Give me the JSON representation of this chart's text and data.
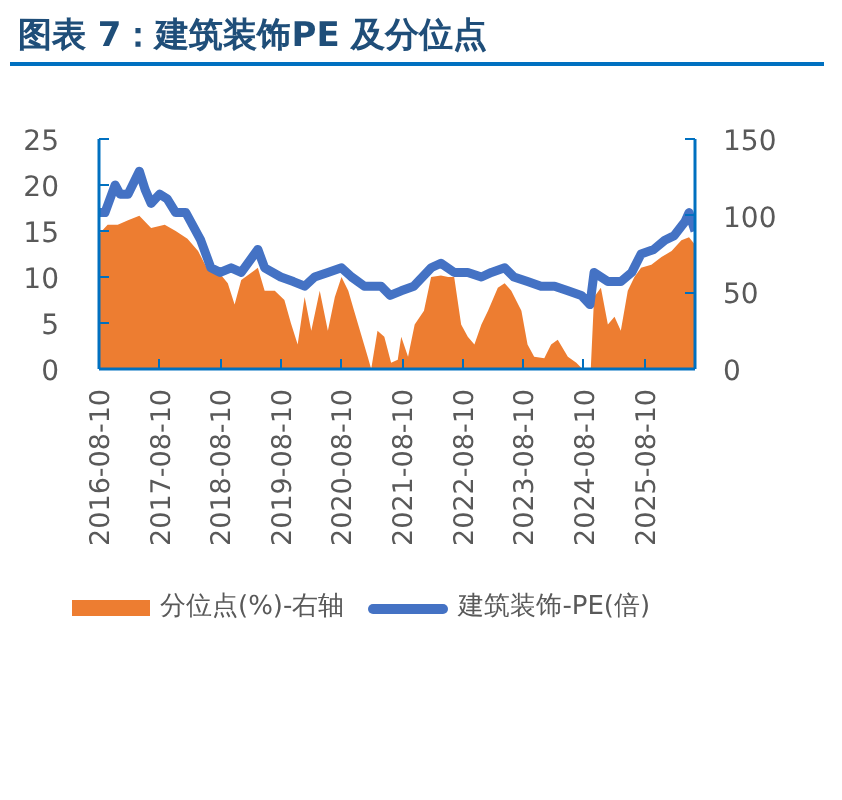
{
  "chart_data": {
    "type": "area",
    "title": "图表 7：建筑装饰PE 及分位点",
    "series": [
      {
        "name": "分位点(%)-右轴",
        "axis": "y2",
        "color": "#ed7d31",
        "x": [
          "2016-08-10",
          "2016-10-01",
          "2016-12-01",
          "2017-02-01",
          "2017-04-10",
          "2017-06-20",
          "2017-09-10",
          "2017-11-15",
          "2018-01-25",
          "2018-03-30",
          "2018-05-30",
          "2018-07-25",
          "2018-09-25",
          "2018-11-05",
          "2018-12-15",
          "2019-03-25",
          "2019-05-05",
          "2019-07-05",
          "2019-09-01",
          "2019-10-10",
          "2019-11-20",
          "2020-01-01",
          "2020-02-10",
          "2020-04-01",
          "2020-05-20",
          "2020-07-01",
          "2020-08-10",
          "2020-09-20",
          "2020-10-25",
          "2020-12-05",
          "2021-01-15",
          "2021-02-05",
          "2021-03-15",
          "2021-04-25",
          "2021-06-05",
          "2021-07-15",
          "2021-08-05",
          "2021-09-15",
          "2021-10-25",
          "2021-12-20",
          "2022-02-01",
          "2022-04-01",
          "2022-05-15",
          "2022-06-20",
          "2022-08-01",
          "2022-09-10",
          "2022-10-20",
          "2022-12-01",
          "2023-01-10",
          "2023-03-10",
          "2023-04-20",
          "2023-05-30",
          "2023-07-30",
          "2023-09-05",
          "2023-10-15",
          "2023-12-15",
          "2024-01-25",
          "2024-03-05",
          "2024-05-05",
          "2024-06-25",
          "2024-08-01",
          "2024-09-20",
          "2024-10-10",
          "2024-11-20",
          "2025-01-01",
          "2025-02-10",
          "2025-03-20",
          "2025-05-01",
          "2025-06-10",
          "2025-07-20",
          "2025-09-20",
          "2025-11-20",
          "2026-01-20",
          "2026-03-20",
          "2026-05-05",
          "2026-06-10"
        ],
        "values": [
          88,
          94,
          94,
          97,
          100,
          92,
          94,
          90,
          85,
          77,
          64,
          64,
          56,
          42,
          58,
          66,
          51,
          51,
          45,
          30,
          16,
          47,
          25,
          51,
          25,
          47,
          60,
          51,
          38,
          23,
          8,
          0,
          25,
          21,
          4,
          6,
          21,
          8,
          29,
          38,
          60,
          61,
          60,
          60,
          29,
          21,
          16,
          29,
          38,
          53,
          56,
          51,
          38,
          16,
          8,
          7,
          16,
          19,
          8,
          4,
          0,
          0,
          47,
          53,
          29,
          34,
          25,
          51,
          60,
          66,
          68,
          73,
          77,
          84,
          86,
          81
        ]
      },
      {
        "name": "建筑装饰-PE(倍)",
        "type": "line",
        "color": "#4472c4",
        "x": [
          "2016-08-10",
          "2016-09-15",
          "2016-11-15",
          "2016-12-15",
          "2017-02-01",
          "2017-04-10",
          "2017-05-15",
          "2017-06-20",
          "2017-08-10",
          "2017-09-25",
          "2017-11-15",
          "2018-01-15",
          "2018-03-01",
          "2018-04-15",
          "2018-06-15",
          "2018-08-10",
          "2018-10-15",
          "2018-12-15",
          "2019-03-25",
          "2019-05-05",
          "2019-08-10",
          "2019-10-25",
          "2020-01-01",
          "2020-03-01",
          "2020-05-20",
          "2020-08-10",
          "2020-10-10",
          "2020-12-25",
          "2021-04-05",
          "2021-05-30",
          "2021-08-05",
          "2021-10-20",
          "2022-02-01",
          "2022-04-01",
          "2022-06-20",
          "2022-09-10",
          "2022-12-01",
          "2023-01-30",
          "2023-04-20",
          "2023-06-15",
          "2023-09-05",
          "2023-11-25",
          "2024-02-15",
          "2024-05-05",
          "2024-07-25",
          "2024-09-15",
          "2024-10-10",
          "2025-01-01",
          "2025-03-20",
          "2025-05-25",
          "2025-07-20",
          "2025-10-05",
          "2025-12-10",
          "2026-02-05",
          "2026-04-10",
          "2026-05-05",
          "2026-06-10"
        ],
        "values": [
          17,
          17,
          20,
          19,
          19,
          21.5,
          19.5,
          18,
          19,
          18.5,
          17,
          17,
          15.5,
          14,
          11,
          10.5,
          11,
          10.5,
          13,
          11,
          10,
          9.5,
          9,
          10,
          10.5,
          11,
          10,
          9,
          9,
          8,
          8.5,
          9,
          11,
          11.5,
          10.5,
          10.5,
          10,
          10.5,
          11,
          10,
          9.5,
          9,
          9,
          8.5,
          8,
          7,
          10.5,
          9.5,
          9.5,
          10.5,
          12.5,
          13,
          14,
          14.5,
          16,
          17,
          15
        ]
      }
    ],
    "xlim": [
      "2016-08-10",
      "2026-06-10"
    ],
    "xticks": [
      "2016-08-10",
      "2017-08-10",
      "2018-08-10",
      "2019-08-10",
      "2020-08-10",
      "2021-08-10",
      "2022-08-10",
      "2023-08-10",
      "2024-08-10",
      "2025-08-10"
    ],
    "ylim": [
      0,
      25
    ],
    "yticks": [
      0,
      5,
      10,
      15,
      20,
      25
    ],
    "y2lim": [
      0,
      150
    ],
    "y2ticks": [
      0,
      50,
      100,
      150
    ],
    "legend": "bottom",
    "line_style": "solid"
  }
}
